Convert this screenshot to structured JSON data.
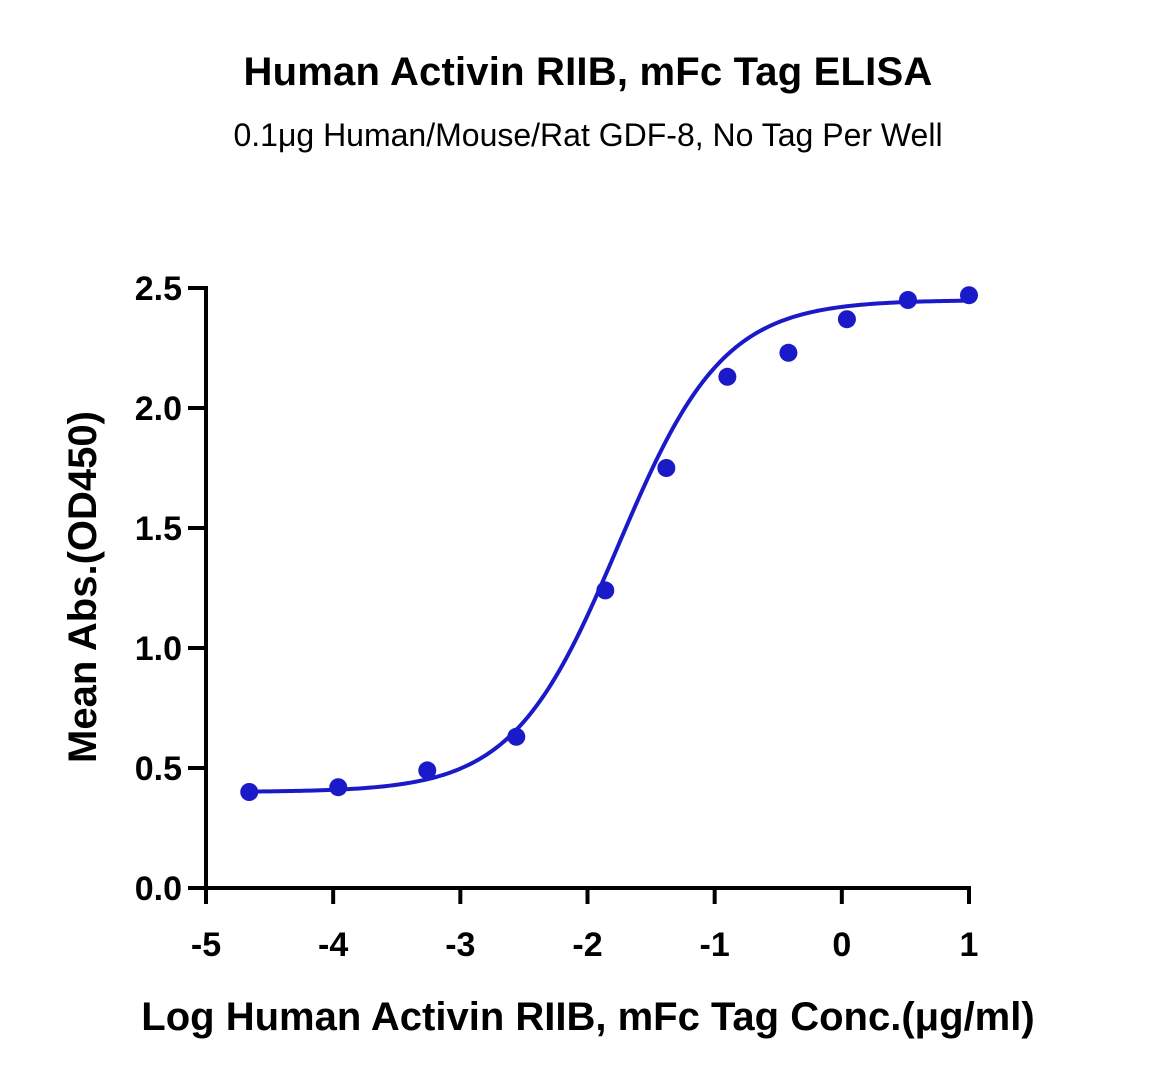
{
  "title": "Human Activin RIIB, mFc Tag ELISA",
  "subtitle": "0.1μg Human/Mouse/Rat GDF-8, No Tag Per Well",
  "colors": {
    "series": "#1a1ac8",
    "axis": "#000000"
  },
  "chart_data": {
    "type": "scatter",
    "xlabel": "Log Human Activin RIIB, mFc Tag Conc.(μg/ml)",
    "ylabel": "Mean Abs.(OD450)",
    "xlim": [
      -5,
      1
    ],
    "ylim": [
      0,
      2.5
    ],
    "x_ticks": [
      "-5",
      "-4",
      "-3",
      "-2",
      "-1",
      "0",
      "1"
    ],
    "y_ticks": [
      "0.0",
      "0.5",
      "1.0",
      "1.5",
      "2.0",
      "2.5"
    ],
    "grid": false,
    "series": [
      {
        "points": [
          {
            "x": -4.66,
            "y": 0.4
          },
          {
            "x": -3.96,
            "y": 0.42
          },
          {
            "x": -3.26,
            "y": 0.49
          },
          {
            "x": -2.56,
            "y": 0.63
          },
          {
            "x": -1.86,
            "y": 1.24
          },
          {
            "x": -1.38,
            "y": 1.75
          },
          {
            "x": -0.9,
            "y": 2.13
          },
          {
            "x": -0.42,
            "y": 2.23
          },
          {
            "x": 0.04,
            "y": 2.37
          },
          {
            "x": 0.52,
            "y": 2.45
          },
          {
            "x": 1.0,
            "y": 2.47
          }
        ],
        "fit": {
          "model": "4PL",
          "bottom": 0.4,
          "top": 2.45,
          "logEC50": -1.76,
          "hill": 1.05
        }
      }
    ]
  }
}
